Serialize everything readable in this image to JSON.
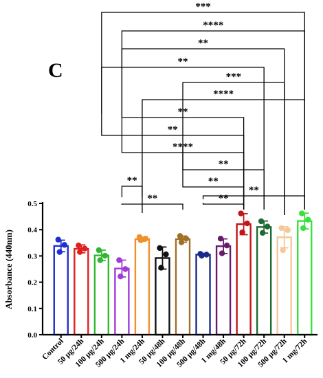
{
  "panel_letter": "C",
  "chart_data": {
    "type": "bar",
    "ylabel": "Absorbance (440nm)",
    "xlabel": "",
    "ylim": [
      0,
      0.5
    ],
    "yticks": [
      "0.0",
      "0.1",
      "0.2",
      "0.3",
      "0.4",
      "0.5"
    ],
    "grid": false,
    "bars": [
      {
        "label": "Control",
        "value": 0.338,
        "err": 0.022,
        "color": "#1f2fd0",
        "points": [
          0.362,
          0.342,
          0.315
        ]
      },
      {
        "label": "50 µg/24h",
        "value": 0.327,
        "err": 0.015,
        "color": "#e0201e",
        "points": [
          0.34,
          0.328,
          0.315
        ]
      },
      {
        "label": "100 µg/24h",
        "value": 0.302,
        "err": 0.02,
        "color": "#2fb82f",
        "points": [
          0.322,
          0.301,
          0.284
        ]
      },
      {
        "label": "500 µg/24h",
        "value": 0.252,
        "err": 0.032,
        "color": "#a23ad8",
        "points": [
          0.284,
          0.25,
          0.222
        ]
      },
      {
        "label": "1 mg/24h",
        "value": 0.364,
        "err": 0.008,
        "color": "#f0902a",
        "points": [
          0.372,
          0.366,
          0.36
        ]
      },
      {
        "label": "50 µg/48h",
        "value": 0.292,
        "err": 0.042,
        "color": "#111111",
        "points": [
          0.33,
          0.306,
          0.255
        ]
      },
      {
        "label": "100 µg/48h",
        "value": 0.364,
        "err": 0.012,
        "color": "#a0702a",
        "points": [
          0.376,
          0.366,
          0.352
        ]
      },
      {
        "label": "500 µg/48h",
        "value": 0.305,
        "err": 0.005,
        "color": "#1a2a8a",
        "points": [
          0.308,
          0.305,
          0.301
        ]
      },
      {
        "label": "1 mg/48h",
        "value": 0.337,
        "err": 0.028,
        "color": "#6a1a6a",
        "points": [
          0.366,
          0.34,
          0.31
        ]
      },
      {
        "label": "50 µg/72h",
        "value": 0.421,
        "err": 0.04,
        "color": "#c01818",
        "points": [
          0.462,
          0.424,
          0.39
        ]
      },
      {
        "label": "100 µg/72h",
        "value": 0.41,
        "err": 0.023,
        "color": "#1d6a33",
        "points": [
          0.432,
          0.412,
          0.388
        ]
      },
      {
        "label": "500 µg/72h",
        "value": 0.371,
        "err": 0.04,
        "color": "#f5c79a",
        "points": [
          0.406,
          0.398,
          0.322
        ]
      },
      {
        "label": "1 mg/72h",
        "value": 0.433,
        "err": 0.03,
        "color": "#38e040",
        "points": [
          0.462,
          0.438,
          0.406
        ]
      }
    ],
    "comparisons": [
      {
        "from": 2,
        "to": 12,
        "label": "***"
      },
      {
        "from": 3,
        "to": 12,
        "label": "****"
      },
      {
        "from": 3,
        "to": 11,
        "label": "**"
      },
      {
        "from": 2,
        "to": 10,
        "label": "**"
      },
      {
        "from": 6,
        "to": 11,
        "label": "***"
      },
      {
        "from": 4,
        "to": 12,
        "label": "****"
      },
      {
        "from": 3,
        "to": 9,
        "label": "**"
      },
      {
        "from": 2,
        "to": 9,
        "label": "**"
      },
      {
        "from": 3,
        "to": 9,
        "label": "****"
      },
      {
        "from": 6,
        "to": 10,
        "label": "**"
      },
      {
        "from": 6,
        "to": 9,
        "label": "**"
      },
      {
        "from": 3,
        "to": 6,
        "label": "**"
      },
      {
        "from": 7,
        "to": 12,
        "label": "**"
      },
      {
        "from": 3,
        "to": 4,
        "label": "**"
      },
      {
        "from": 7,
        "to": 9,
        "label": "**"
      }
    ]
  }
}
